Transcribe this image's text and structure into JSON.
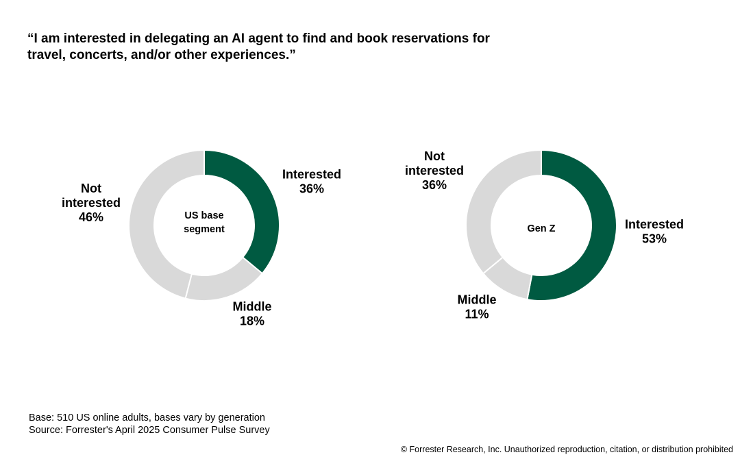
{
  "title": {
    "line1": "“I am interested in delegating an AI agent to find and book reservations for",
    "line2": "travel, concerts, and/or other experiences.”"
  },
  "colors": {
    "interested": "#005a41",
    "other": "#d9d9d9",
    "separator": "#ffffff"
  },
  "chart_data": [
    {
      "type": "pie",
      "donut": true,
      "center_label": [
        "US base",
        "segment"
      ],
      "slices": [
        {
          "key": "interested",
          "label": [
            "Interested"
          ],
          "value": 36,
          "display": "36%"
        },
        {
          "key": "middle",
          "label": [
            "Middle"
          ],
          "value": 18,
          "display": "18%"
        },
        {
          "key": "not_interested",
          "label": [
            "Not",
            "interested"
          ],
          "value": 46,
          "display": "46%"
        }
      ]
    },
    {
      "type": "pie",
      "donut": true,
      "center_label": [
        "Gen Z"
      ],
      "slices": [
        {
          "key": "interested",
          "label": [
            "Interested"
          ],
          "value": 53,
          "display": "53%"
        },
        {
          "key": "middle",
          "label": [
            "Middle"
          ],
          "value": 11,
          "display": "11%"
        },
        {
          "key": "not_interested",
          "label": [
            "Not",
            "interested"
          ],
          "value": 36,
          "display": "36%"
        }
      ]
    }
  ],
  "footer": {
    "base": "Base: 510 US online adults, bases vary by generation",
    "source": "Source: Forrester's April 2025 Consumer Pulse Survey",
    "copyright": "© Forrester Research, Inc. Unauthorized reproduction, citation, or distribution prohibited"
  }
}
